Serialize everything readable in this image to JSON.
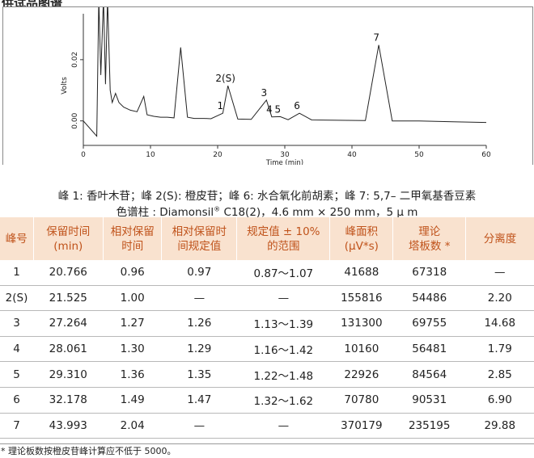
{
  "header": {
    "title": "供试品图谱"
  },
  "chart_data": {
    "type": "line",
    "ylabel": "Volts",
    "xlabel": "Time (min)",
    "xlim": [
      0,
      60
    ],
    "ylim": [
      -0.008,
      0.035
    ],
    "x_ticks": [
      "0",
      "10",
      "20",
      "30",
      "40",
      "50",
      "60"
    ],
    "y_ticks": [
      "0.00",
      "0.02"
    ],
    "grid": false,
    "series": [
      {
        "values": [
          [
            0,
            0.0
          ],
          [
            2.0,
            -0.005
          ],
          [
            2.3,
            0.04
          ],
          [
            2.6,
            0.015
          ],
          [
            3.0,
            0.04
          ],
          [
            3.3,
            0.012
          ],
          [
            3.6,
            0.04
          ],
          [
            4.0,
            0.01
          ],
          [
            4.3,
            0.006
          ],
          [
            4.8,
            0.009
          ],
          [
            5.3,
            0.006
          ],
          [
            6.0,
            0.0045
          ],
          [
            7.0,
            0.0035
          ],
          [
            8.0,
            0.003
          ],
          [
            9.0,
            0.008
          ],
          [
            9.5,
            0.002
          ],
          [
            10.5,
            0.0015
          ],
          [
            11.5,
            0.0012
          ],
          [
            12.5,
            0.0012
          ],
          [
            13.5,
            0.001
          ],
          [
            14.5,
            0.024
          ],
          [
            15.5,
            0.0012
          ],
          [
            16.5,
            0.0008
          ],
          [
            18.0,
            0.0008
          ],
          [
            19.0,
            0.0007
          ],
          [
            20.766,
            0.0025
          ],
          [
            21.525,
            0.0115
          ],
          [
            23.0,
            0.0006
          ],
          [
            25.0,
            0.0005
          ],
          [
            27.264,
            0.0068
          ],
          [
            28.061,
            0.0013
          ],
          [
            29.31,
            0.0014
          ],
          [
            30.5,
            0.0004
          ],
          [
            32.178,
            0.0025
          ],
          [
            34.0,
            0.0003
          ],
          [
            38.0,
            0.0002
          ],
          [
            42.0,
            0.0001
          ],
          [
            43.993,
            0.0248
          ],
          [
            46.0,
            0.0
          ],
          [
            50.0,
            0.0
          ],
          [
            55.0,
            -0.0003
          ],
          [
            60.0,
            -0.0005
          ]
        ]
      }
    ],
    "annotations": [
      {
        "text": "1",
        "x": 20.766,
        "y": 0.0025
      },
      {
        "text": "2(S)",
        "x": 21.525,
        "y": 0.0115
      },
      {
        "text": "3",
        "x": 27.264,
        "y": 0.0068
      },
      {
        "text": "4",
        "x": 28.061,
        "y": 0.0013
      },
      {
        "text": "5",
        "x": 29.31,
        "y": 0.0014
      },
      {
        "text": "6",
        "x": 32.178,
        "y": 0.0025
      },
      {
        "text": "7",
        "x": 43.993,
        "y": 0.0248
      }
    ]
  },
  "captions": {
    "peaks": "峰 1: 香叶木苷；峰 2(S): 橙皮苷；峰 6: 水合氧化前胡素；峰 7: 5,7– 二甲氧基香豆素",
    "column_prefix": "色谱柱 : Diamonsil",
    "column_sup": "®",
    "column_suffix": " C18(2)，4.6 mm × 250 mm，5 μ m"
  },
  "table": {
    "headers": [
      "峰号",
      "保留时间\n(min)",
      "相对保留\n时间",
      "相对保留时\n间规定值",
      "规定值 ± 10%\n的范围",
      "峰面积\n(μV*s)",
      "理论\n塔板数 *",
      "分离度"
    ],
    "rows": [
      [
        "1",
        "20.766",
        "0.96",
        "0.97",
        "0.87～1.07",
        "41688",
        "67318",
        "—"
      ],
      [
        "2(S)",
        "21.525",
        "1.00",
        "—",
        "—",
        "155816",
        "54486",
        "2.20"
      ],
      [
        "3",
        "27.264",
        "1.27",
        "1.26",
        "1.13～1.39",
        "131300",
        "69755",
        "14.68"
      ],
      [
        "4",
        "28.061",
        "1.30",
        "1.29",
        "1.16～1.42",
        "10160",
        "56481",
        "1.79"
      ],
      [
        "5",
        "29.310",
        "1.36",
        "1.35",
        "1.22～1.48",
        "22926",
        "84564",
        "2.85"
      ],
      [
        "6",
        "32.178",
        "1.49",
        "1.47",
        "1.32～1.62",
        "70780",
        "90531",
        "6.90"
      ],
      [
        "7",
        "43.993",
        "2.04",
        "—",
        "—",
        "370179",
        "235195",
        "29.88"
      ]
    ]
  },
  "footnote": "* 理论板数按橙皮苷峰计算应不低于 5000。",
  "colors": {
    "header_bg": "#f9e2cf",
    "header_text": "#c0531b",
    "trace": "#222222"
  }
}
